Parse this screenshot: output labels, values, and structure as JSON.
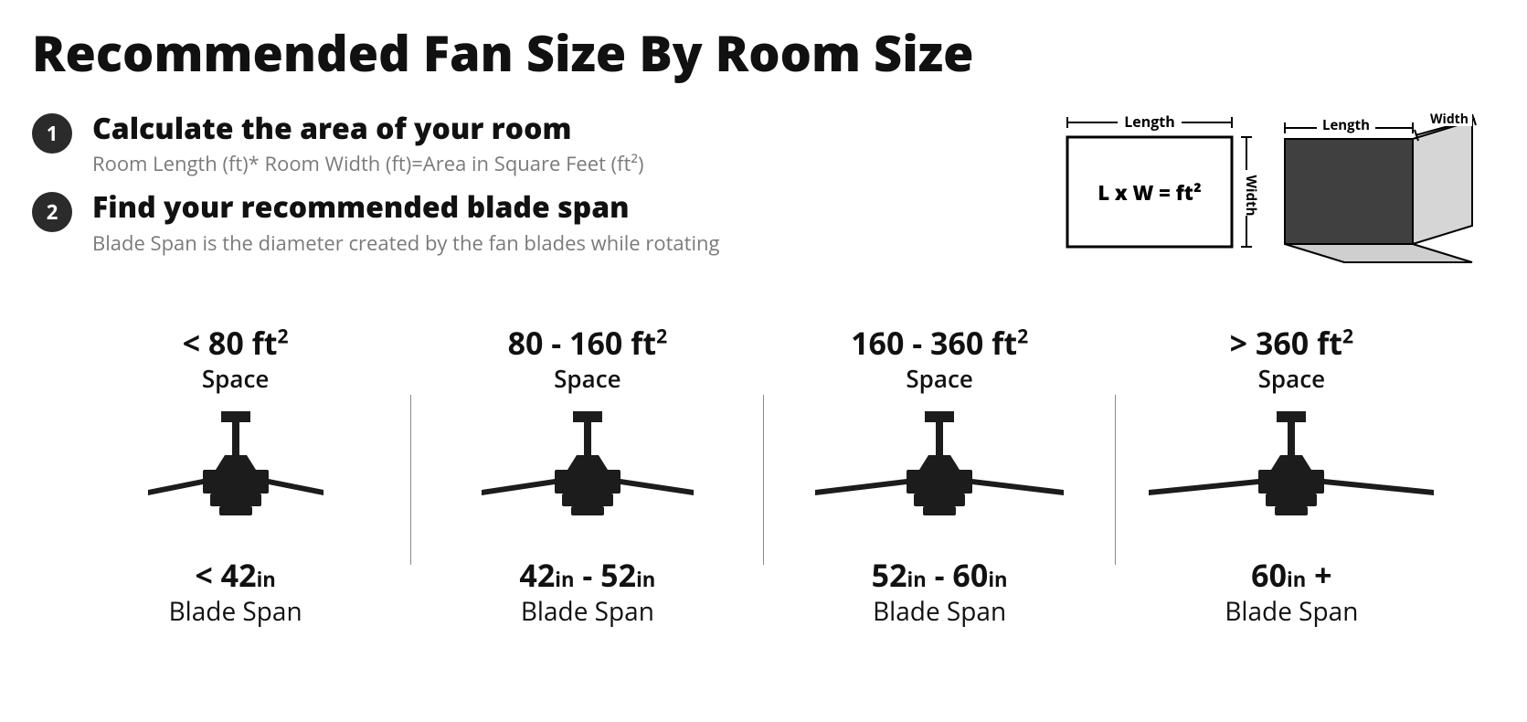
{
  "type": "infographic",
  "background_color": "#ffffff",
  "text_color": "#1a1a1a",
  "subtext_color": "#7a7a7a",
  "badge_bg": "#2b2b2b",
  "badge_fg": "#ffffff",
  "divider_color": "#8a8a8a",
  "fan_icon_color": "#1c1c1c",
  "title": "Recommended Fan Size By Room Size",
  "title_fontsize": 54,
  "title_weight": 800,
  "steps": [
    {
      "num": "1",
      "title": "Calculate the area of your room",
      "sub": "Room Length (ft)* Room Width (ft)=Area in Square Feet (ft²)"
    },
    {
      "num": "2",
      "title": "Find your recommended blade span",
      "sub": "Blade Span is the diameter created by the fan blades while rotating"
    }
  ],
  "step_title_fontsize": 32,
  "step_sub_fontsize": 22,
  "room_diagram": {
    "length_label": "Length",
    "width_label": "Width",
    "formula": "L x W = ft²",
    "outline_color": "#000000",
    "face_dark": "#404040",
    "face_light": "#d6d6d6",
    "top_face": "#f0f0f0"
  },
  "columns": [
    {
      "space_html": "< 80 ft<sup>2</sup>",
      "space_label": "Space",
      "blade_html": "< 42<span class='unit-in'>in</span>",
      "blade_label": "Blade Span",
      "fan_width": 200
    },
    {
      "space_html": "80 - 160 ft<sup>2</sup>",
      "space_label": "Space",
      "blade_html": "42<span class='unit-in'>in</span> - 52<span class='unit-in'>in</span>",
      "blade_label": "Blade Span",
      "fan_width": 240
    },
    {
      "space_html": "160 - 360 ft<sup>2</sup>",
      "space_label": "Space",
      "blade_html": "52<span class='unit-in'>in</span> - 60<span class='unit-in'>in</span>",
      "blade_label": "Blade Span",
      "fan_width": 280
    },
    {
      "space_html": "> 360 ft<sup>2</sup>",
      "space_label": "Space",
      "blade_html": "60<span class='unit-in'>in</span> +",
      "blade_label": "Blade Span",
      "fan_width": 320
    }
  ],
  "space_fontsize": 34,
  "blade_fontsize": 34,
  "label_fontsize": 28
}
